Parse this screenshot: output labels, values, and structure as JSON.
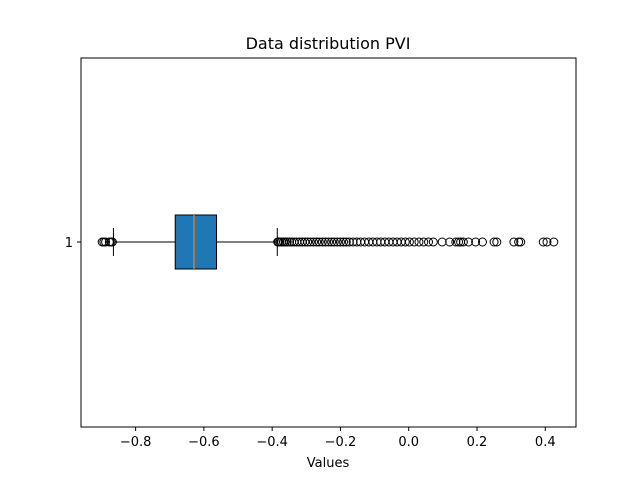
{
  "chart_data": {
    "type": "boxplot",
    "orientation": "horizontal",
    "title": "Data distribution PVI",
    "xlabel": "Values",
    "ylabel": "",
    "xlim": [
      -0.96,
      0.49
    ],
    "x_ticks": [
      -0.8,
      -0.6,
      -0.4,
      -0.2,
      0.0,
      0.2,
      0.4
    ],
    "x_tick_labels": [
      "−0.8",
      "−0.6",
      "−0.4",
      "−0.2",
      "0.0",
      "0.2",
      "0.4"
    ],
    "y_tick_labels": [
      "1"
    ],
    "box": {
      "category": "1",
      "whisker_low": -0.865,
      "q1": -0.684,
      "median": -0.629,
      "q3": -0.563,
      "whisker_high": -0.385,
      "outliers_low": [
        -0.898,
        -0.893,
        -0.888,
        -0.877,
        -0.872,
        -0.868
      ],
      "outliers_high": [
        -0.384,
        -0.381,
        -0.377,
        -0.372,
        -0.367,
        -0.362,
        -0.356,
        -0.349,
        -0.343,
        -0.336,
        -0.328,
        -0.32,
        -0.312,
        -0.304,
        -0.296,
        -0.288,
        -0.279,
        -0.27,
        -0.262,
        -0.253,
        -0.244,
        -0.235,
        -0.226,
        -0.218,
        -0.209,
        -0.2,
        -0.191,
        -0.183,
        -0.174,
        -0.163,
        -0.152,
        -0.141,
        -0.129,
        -0.117,
        -0.105,
        -0.093,
        -0.082,
        -0.07,
        -0.058,
        -0.046,
        -0.034,
        -0.022,
        -0.01,
        0.002,
        0.016,
        0.03,
        0.044,
        0.058,
        0.072,
        0.098,
        0.12,
        0.138,
        0.146,
        0.152,
        0.16,
        0.175,
        0.196,
        0.216,
        0.25,
        0.258,
        0.308,
        0.322,
        0.328,
        0.394,
        0.405,
        0.425
      ]
    },
    "colors": {
      "box_fill": "#1f77b4",
      "median": "#ff7f0e",
      "line": "#000000"
    },
    "grid": false,
    "legend": "none"
  }
}
